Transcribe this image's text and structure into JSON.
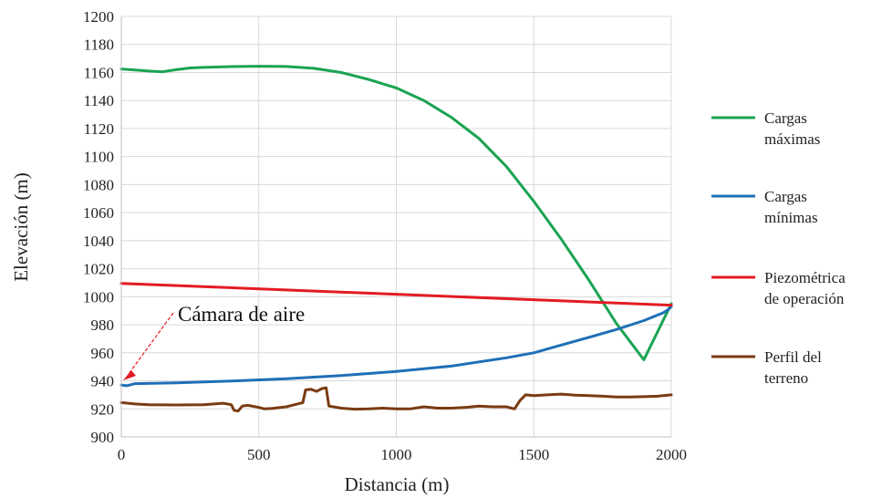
{
  "chart_data": {
    "type": "line",
    "xlabel": "Distancia (m)",
    "ylabel": "Elevación (m)",
    "xlim": [
      0,
      2000
    ],
    "ylim": [
      900,
      1200
    ],
    "x_ticks": [
      0,
      500,
      1000,
      1500,
      2000
    ],
    "y_ticks": [
      900,
      920,
      940,
      960,
      980,
      1000,
      1020,
      1040,
      1060,
      1080,
      1100,
      1120,
      1140,
      1160,
      1180,
      1200
    ],
    "grid": true,
    "legend_position": "right",
    "annotation": {
      "text": "Cámara de aire",
      "target": [
        0,
        937
      ]
    },
    "series": [
      {
        "name": "Cargas máximas",
        "legend_lines": [
          "Cargas",
          "máximas"
        ],
        "color": "#1aa351",
        "points": [
          [
            0,
            1162.5
          ],
          [
            100,
            1161
          ],
          [
            150,
            1160.5
          ],
          [
            200,
            1162
          ],
          [
            250,
            1163.2
          ],
          [
            300,
            1163.6
          ],
          [
            400,
            1164.2
          ],
          [
            500,
            1164.5
          ],
          [
            600,
            1164.3
          ],
          [
            700,
            1163
          ],
          [
            800,
            1160
          ],
          [
            900,
            1155
          ],
          [
            1000,
            1149
          ],
          [
            1100,
            1140
          ],
          [
            1200,
            1128
          ],
          [
            1300,
            1113
          ],
          [
            1400,
            1093
          ],
          [
            1500,
            1068
          ],
          [
            1600,
            1041
          ],
          [
            1700,
            1012
          ],
          [
            1800,
            981
          ],
          [
            1900,
            955
          ],
          [
            2000,
            995
          ]
        ]
      },
      {
        "name": "Cargas mínimas",
        "legend_lines": [
          "Cargas",
          "mínimas"
        ],
        "color": "#1f6fb8",
        "points": [
          [
            0,
            937
          ],
          [
            20,
            936.5
          ],
          [
            50,
            938
          ],
          [
            200,
            938.5
          ],
          [
            400,
            939.8
          ],
          [
            600,
            941.5
          ],
          [
            800,
            943.8
          ],
          [
            1000,
            946.7
          ],
          [
            1200,
            950.5
          ],
          [
            1400,
            956.4
          ],
          [
            1500,
            960
          ],
          [
            1600,
            965.5
          ],
          [
            1700,
            971
          ],
          [
            1800,
            976.6
          ],
          [
            1900,
            983
          ],
          [
            1970,
            988.5
          ],
          [
            1990,
            991
          ],
          [
            2000,
            993
          ]
        ]
      },
      {
        "name": "Piezométrica de operación",
        "legend_lines": [
          "Piezométrica",
          "de operación"
        ],
        "color": "#e31b23",
        "points": [
          [
            0,
            1009.5
          ],
          [
            2000,
            994
          ]
        ]
      },
      {
        "name": "Perfil del terreno",
        "legend_lines": [
          "Perfil del",
          "terreno"
        ],
        "color": "#7a3b12",
        "points": [
          [
            0,
            924.5
          ],
          [
            50,
            923.5
          ],
          [
            100,
            923
          ],
          [
            200,
            922.8
          ],
          [
            300,
            923
          ],
          [
            370,
            924
          ],
          [
            400,
            923
          ],
          [
            410,
            919
          ],
          [
            425,
            918.5
          ],
          [
            440,
            922
          ],
          [
            460,
            922.5
          ],
          [
            500,
            921
          ],
          [
            520,
            920
          ],
          [
            550,
            920.3
          ],
          [
            600,
            921.5
          ],
          [
            640,
            923.5
          ],
          [
            660,
            924.5
          ],
          [
            670,
            933.5
          ],
          [
            690,
            934
          ],
          [
            710,
            932.5
          ],
          [
            730,
            934.5
          ],
          [
            745,
            935
          ],
          [
            755,
            922
          ],
          [
            800,
            920.5
          ],
          [
            850,
            919.8
          ],
          [
            900,
            920
          ],
          [
            950,
            920.5
          ],
          [
            1000,
            920
          ],
          [
            1050,
            920
          ],
          [
            1100,
            921.5
          ],
          [
            1150,
            920.5
          ],
          [
            1200,
            920.5
          ],
          [
            1250,
            921
          ],
          [
            1300,
            922
          ],
          [
            1350,
            921.5
          ],
          [
            1400,
            921.5
          ],
          [
            1430,
            920
          ],
          [
            1450,
            926
          ],
          [
            1470,
            930
          ],
          [
            1500,
            929.5
          ],
          [
            1550,
            930
          ],
          [
            1600,
            930.5
          ],
          [
            1650,
            929.8
          ],
          [
            1700,
            929.5
          ],
          [
            1750,
            929
          ],
          [
            1800,
            928.5
          ],
          [
            1850,
            928.5
          ],
          [
            1900,
            928.7
          ],
          [
            1950,
            929
          ],
          [
            2000,
            930
          ]
        ]
      }
    ]
  }
}
